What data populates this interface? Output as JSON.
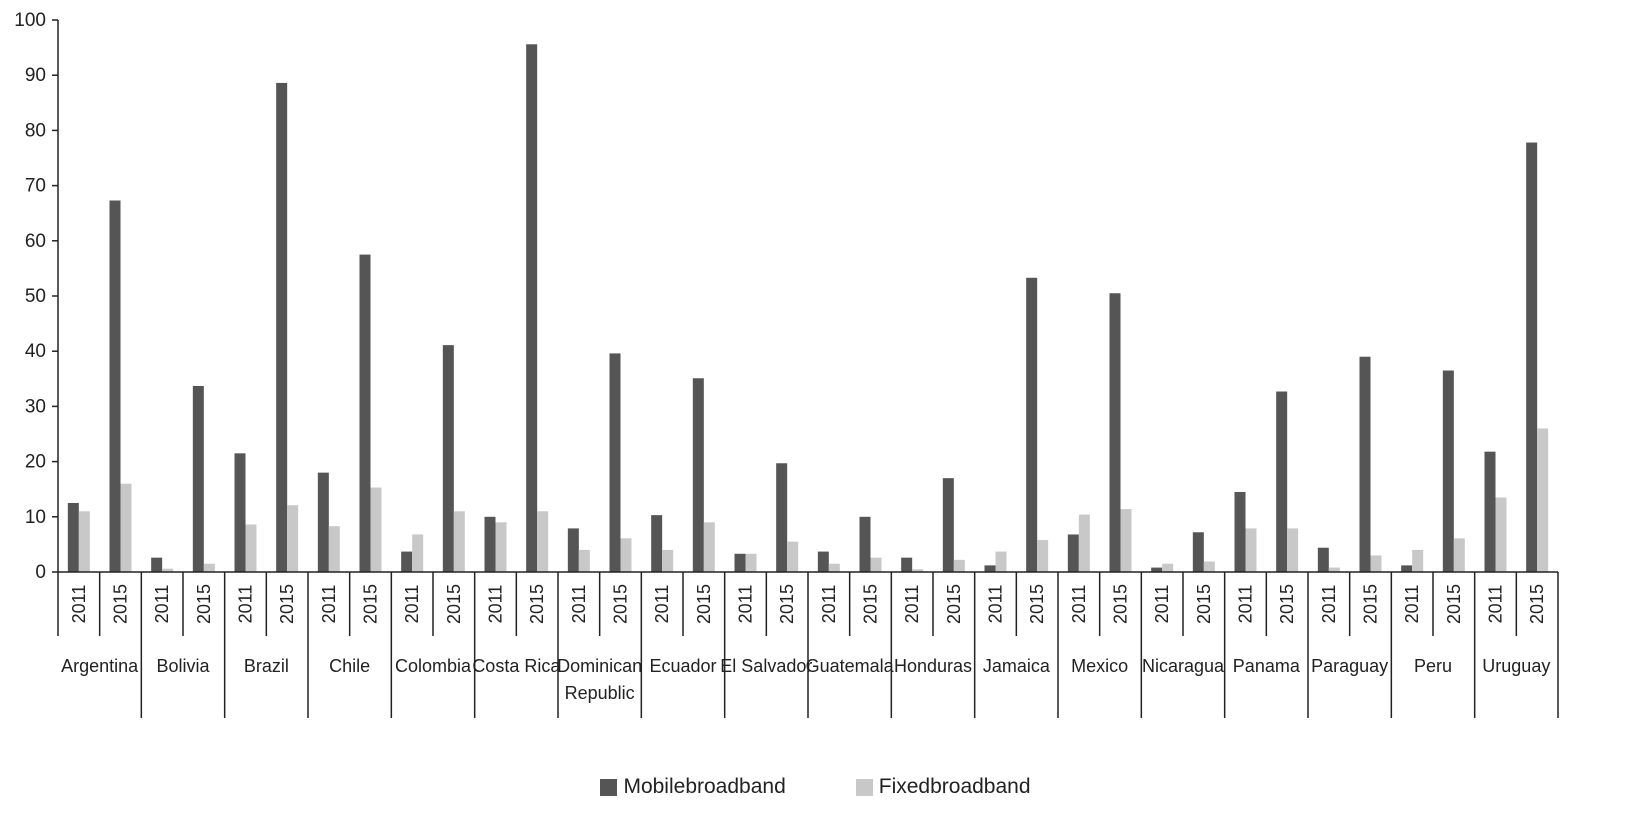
{
  "colors": {
    "mobile": "#555555",
    "fixed": "#c8c8c8",
    "axis": "#222222"
  },
  "chart_data": {
    "type": "bar",
    "ylim": [
      0,
      100
    ],
    "yticks": [
      "0",
      "10",
      "20",
      "30",
      "40",
      "50",
      "60",
      "70",
      "80",
      "90",
      "100"
    ],
    "years": [
      "2011",
      "2015"
    ],
    "countries": [
      {
        "name": [
          "Argentina"
        ],
        "mobile": [
          12.5,
          67.3
        ],
        "fixed": [
          11.0,
          16.0
        ]
      },
      {
        "name": [
          "Bolivia"
        ],
        "mobile": [
          2.6,
          33.7
        ],
        "fixed": [
          0.6,
          1.5
        ]
      },
      {
        "name": [
          "Brazil"
        ],
        "mobile": [
          21.5,
          88.6
        ],
        "fixed": [
          8.6,
          12.1
        ]
      },
      {
        "name": [
          "Chile"
        ],
        "mobile": [
          18.0,
          57.5
        ],
        "fixed": [
          8.3,
          15.3
        ]
      },
      {
        "name": [
          "Colombia"
        ],
        "mobile": [
          3.7,
          41.1
        ],
        "fixed": [
          6.8,
          11.0
        ]
      },
      {
        "name": [
          "Costa Rica"
        ],
        "mobile": [
          10.0,
          95.6
        ],
        "fixed": [
          9.0,
          11.0
        ]
      },
      {
        "name": [
          "Dominican",
          "Republic"
        ],
        "mobile": [
          7.9,
          39.6
        ],
        "fixed": [
          4.0,
          6.1
        ]
      },
      {
        "name": [
          "Ecuador"
        ],
        "mobile": [
          10.3,
          35.1
        ],
        "fixed": [
          4.0,
          9.0
        ]
      },
      {
        "name": [
          "El Salvador"
        ],
        "mobile": [
          3.3,
          19.7
        ],
        "fixed": [
          3.3,
          5.5
        ]
      },
      {
        "name": [
          "Guatemala"
        ],
        "mobile": [
          3.7,
          10.0
        ],
        "fixed": [
          1.5,
          2.6
        ]
      },
      {
        "name": [
          "Honduras"
        ],
        "mobile": [
          2.6,
          17.0
        ],
        "fixed": [
          0.5,
          2.2
        ]
      },
      {
        "name": [
          "Jamaica"
        ],
        "mobile": [
          1.2,
          53.3
        ],
        "fixed": [
          3.7,
          5.8
        ]
      },
      {
        "name": [
          "Mexico"
        ],
        "mobile": [
          6.8,
          50.5
        ],
        "fixed": [
          10.4,
          11.4
        ]
      },
      {
        "name": [
          "Nicaragua"
        ],
        "mobile": [
          0.8,
          7.2
        ],
        "fixed": [
          1.5,
          1.9
        ]
      },
      {
        "name": [
          "Panama"
        ],
        "mobile": [
          14.5,
          32.7
        ],
        "fixed": [
          7.9,
          7.9
        ]
      },
      {
        "name": [
          "Paraguay"
        ],
        "mobile": [
          4.4,
          39.0
        ],
        "fixed": [
          0.8,
          3.0
        ]
      },
      {
        "name": [
          "Peru"
        ],
        "mobile": [
          1.2,
          36.5
        ],
        "fixed": [
          4.0,
          6.1
        ]
      },
      {
        "name": [
          "Uruguay"
        ],
        "mobile": [
          21.8,
          77.8
        ],
        "fixed": [
          13.5,
          26.0
        ]
      }
    ],
    "series": [
      {
        "name": "Mobilebroadband",
        "key": "mobile"
      },
      {
        "name": "Fixedbroadband",
        "key": "fixed"
      }
    ],
    "legend_position": "bottom-center",
    "grid": false
  }
}
